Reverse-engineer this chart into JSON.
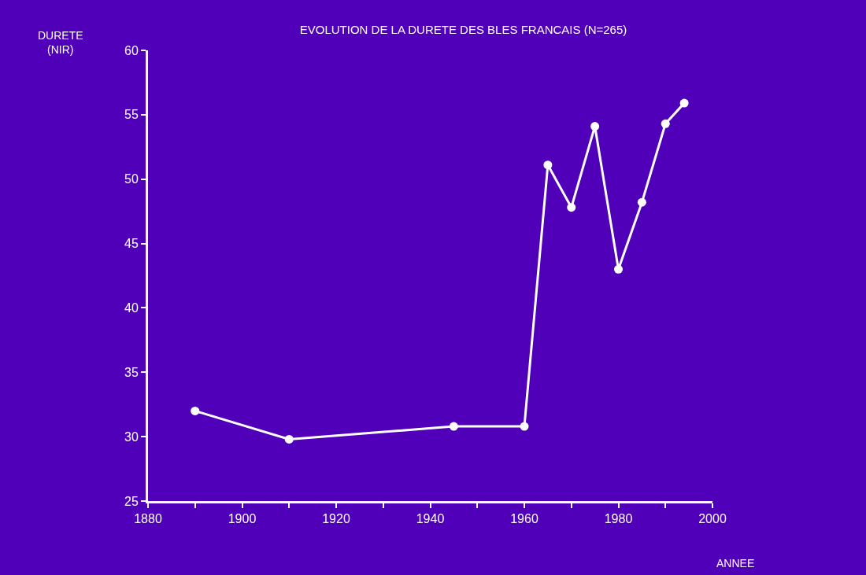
{
  "chart_data": {
    "type": "line",
    "title": "EVOLUTION DE LA DURETE DES BLES FRANCAIS (N=265)",
    "xlabel": "ANNEE",
    "ylabel": "DURETE\n(NIR)",
    "x": [
      1890,
      1910,
      1945,
      1960,
      1965,
      1970,
      1975,
      1980,
      1985,
      1990,
      1994
    ],
    "series": [
      {
        "color": "#ffffff",
        "values": [
          32,
          29.8,
          30.8,
          30.8,
          51.1,
          47.8,
          54.1,
          43.0,
          48.2,
          54.3,
          55.9
        ]
      }
    ],
    "xlim": [
      1880,
      2000
    ],
    "xticks": [
      1880,
      {
        "value": 1890,
        "label": null
      },
      1900,
      {
        "value": 1910,
        "label": null
      },
      1920,
      {
        "value": 1930,
        "label": null
      },
      1940,
      {
        "value": 1950,
        "label": null
      },
      1960,
      {
        "value": 1970,
        "label": null
      },
      1980,
      {
        "value": 1990,
        "label": null
      },
      2000
    ],
    "ylim": [
      25,
      60
    ],
    "yticks": [
      25,
      30,
      35,
      40,
      45,
      50,
      55,
      60
    ],
    "grid": false,
    "legend": false,
    "marker": "circle",
    "line_style": "solid"
  }
}
